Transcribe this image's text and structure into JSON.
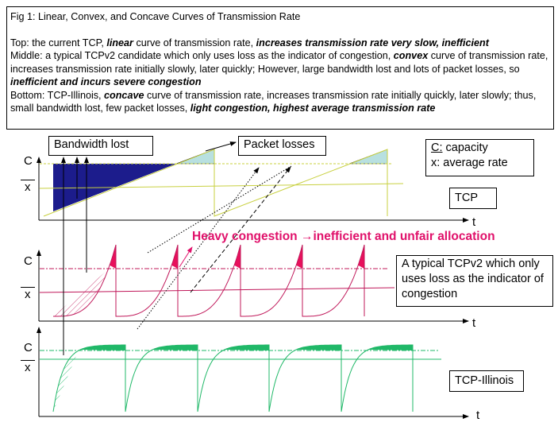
{
  "caption": {
    "title": "Fig 1: Linear, Convex, and Concave Curves of Transmission Rate",
    "top": {
      "prefix": "Top: the current TCP, ",
      "b1": "linear",
      "mid": " curve of transmission rate, ",
      "b2": "increases transmission rate very slow, inefficient"
    },
    "middle": {
      "prefix": "Middle: a typical TCPv2 candidate which only uses loss as the indicator of congestion, ",
      "b1": "convex",
      "mid": " curve of transmission rate, increases transmission rate initially slowly, later quickly; However, large bandwidth lost and lots of packet losses, so ",
      "b2": "inefficient and incurs severe congestion"
    },
    "bottom": {
      "prefix": "Bottom: TCP-Illinois, ",
      "b1": "concave",
      "mid": " curve of transmission rate, increases transmission rate initially quickly, later slowly; thus, small bandwidth lost, few packet losses, ",
      "b2": "light congestion, highest average transmission rate"
    }
  },
  "labels": {
    "bandwidth_lost": "Bandwidth lost",
    "packet_losses": "Packet losses",
    "legend_c": "C:",
    "legend_c_text": " capacity",
    "legend_x": "x: average rate",
    "tcp": "TCP",
    "tcpv2": "A typical TCPv2 which only uses loss as the indicator of congestion",
    "illinois": "TCP-Illinois",
    "heavy": "Heavy congestion →inefficient and unfair allocation",
    "axis_c": "C",
    "axis_x": "x",
    "axis_t": "t"
  },
  "colors": {
    "tcp": "#c8d040",
    "tcp_fill": "#1c1c8c",
    "tcp_loss": "#b8e0e0",
    "v2": "#c0185a",
    "v2_fill": "#e8105c",
    "illinois": "#20b868",
    "heavy": "#e0106a"
  }
}
